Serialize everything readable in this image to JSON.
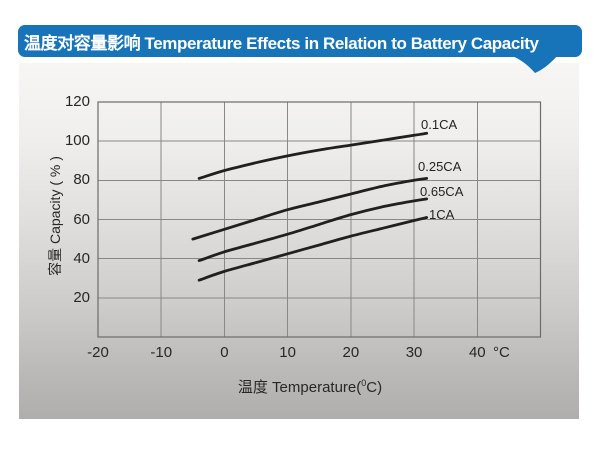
{
  "header": {
    "title": "温度对容量影响 Temperature Effects in Relation to Battery Capacity"
  },
  "colors": {
    "banner_blue": "#1774b8",
    "curve": "#231f20",
    "grid": "#8a8786",
    "plot_border": "#6e6b6a",
    "text": "#2a2624"
  },
  "chart_data": {
    "type": "line",
    "title": "温度对容量影响 Temperature Effects in Relation to Battery Capacity",
    "xlabel": {
      "prefix": "温度  Temperature(",
      "sup": "0",
      "suffix": "C)"
    },
    "ylabel": "容量 Capacity ( % )",
    "x_unit": "°C",
    "xlim": [
      -20,
      50
    ],
    "ylim": [
      0,
      120
    ],
    "x_ticks": [
      -20,
      -10,
      0,
      10,
      20,
      30,
      40
    ],
    "y_ticks": [
      120,
      100,
      80,
      60,
      40,
      20
    ],
    "x_grid_step": 10,
    "y_grid_step": 20,
    "grid": true,
    "legend": "inline-labels-at-curve-ends",
    "series": [
      {
        "name": "0.1CA",
        "points": [
          [
            -4,
            81
          ],
          [
            0,
            85
          ],
          [
            5,
            89
          ],
          [
            10,
            92.5
          ],
          [
            15,
            95.5
          ],
          [
            20,
            98
          ],
          [
            25,
            100.5
          ],
          [
            30,
            103
          ],
          [
            32,
            104
          ]
        ]
      },
      {
        "name": "0.25CA",
        "points": [
          [
            -5,
            50
          ],
          [
            0,
            55
          ],
          [
            5,
            60
          ],
          [
            10,
            65
          ],
          [
            15,
            69
          ],
          [
            20,
            73
          ],
          [
            25,
            77
          ],
          [
            30,
            80
          ],
          [
            32,
            81
          ]
        ]
      },
      {
        "name": "0.65CA",
        "points": [
          [
            -4,
            39
          ],
          [
            0,
            43.5
          ],
          [
            5,
            48
          ],
          [
            10,
            52.5
          ],
          [
            15,
            57.5
          ],
          [
            20,
            62.5
          ],
          [
            25,
            66.5
          ],
          [
            30,
            69.5
          ],
          [
            32,
            70.5
          ]
        ]
      },
      {
        "name": "1CA",
        "points": [
          [
            -4,
            29
          ],
          [
            0,
            33.5
          ],
          [
            5,
            38
          ],
          [
            10,
            42.5
          ],
          [
            15,
            47
          ],
          [
            20,
            51.5
          ],
          [
            25,
            55.5
          ],
          [
            30,
            59.5
          ],
          [
            32,
            61
          ]
        ]
      }
    ]
  }
}
